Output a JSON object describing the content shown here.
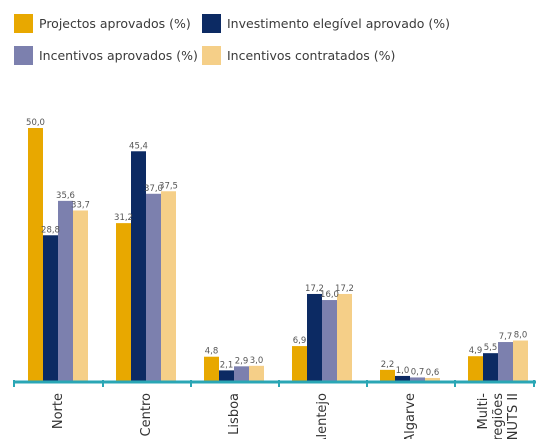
{
  "chart_data": {
    "type": "bar",
    "categories": [
      "Norte",
      "Centro",
      "Lisboa",
      "Alentejo",
      "Algarve",
      "Multi-regiões NUTS II"
    ],
    "category_lines": [
      [
        "Norte"
      ],
      [
        "Centro"
      ],
      [
        "Lisboa"
      ],
      [
        "Alentejo"
      ],
      [
        "Algarve"
      ],
      [
        "Multi-",
        "regiões",
        "NUTS II"
      ]
    ],
    "series": [
      {
        "name": "Projectos aprovados (%)",
        "color": "#e8a800",
        "values": [
          50.0,
          31.2,
          4.8,
          6.9,
          2.2,
          4.9
        ],
        "labels": [
          "50,0",
          "31,2",
          "4,8",
          "6,9",
          "2,2",
          "4,9"
        ]
      },
      {
        "name": "Investimento elegível aprovado (%)",
        "color": "#0c2a63",
        "values": [
          28.8,
          45.4,
          2.1,
          17.2,
          1.0,
          5.5
        ],
        "labels": [
          "28,8",
          "45,4",
          "2,1",
          "17,2",
          "1,0",
          "5,5"
        ]
      },
      {
        "name": "Incentivos aprovados (%)",
        "color": "#7c80ae",
        "values": [
          35.6,
          37.0,
          2.9,
          16.0,
          0.7,
          7.7
        ],
        "labels": [
          "35,6",
          "37,0",
          "2,9",
          "16,0",
          "0,7",
          "7,7"
        ]
      },
      {
        "name": "Incentivos contratados (%)",
        "color": "#f5cf88",
        "values": [
          33.7,
          37.5,
          3.0,
          17.2,
          0.6,
          8.0
        ],
        "labels": [
          "33,7",
          "37,5",
          "3,0",
          "17,2",
          "0,6",
          "8,0"
        ]
      }
    ],
    "ylim": [
      0,
      50
    ],
    "axis_color": "#2aa6b5",
    "legend_position": "top",
    "grid": false
  }
}
